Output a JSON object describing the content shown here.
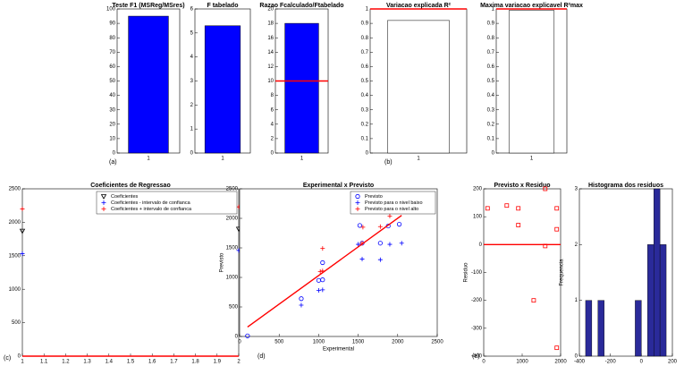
{
  "figure_labels": [
    "(a)",
    "(b)",
    "(c)",
    "(d)",
    "(e)"
  ],
  "chart_data": [
    {
      "type": "bar",
      "title": "Teste F1 (MSReg/MSres)",
      "categories": [
        "1"
      ],
      "values": [
        95
      ],
      "color": "#0000ff",
      "ylim": [
        0,
        100
      ],
      "yticks": [
        0,
        10,
        20,
        30,
        40,
        50,
        60,
        70,
        80,
        90,
        100
      ]
    },
    {
      "type": "bar",
      "title": "F tabelado",
      "categories": [
        "1"
      ],
      "values": [
        5.3
      ],
      "color": "#0000ff",
      "ylim": [
        0,
        6
      ],
      "yticks": [
        0,
        1,
        2,
        3,
        4,
        5,
        6
      ]
    },
    {
      "type": "bar",
      "title": "Razao Fcalculado/Ftabelado",
      "categories": [
        "1"
      ],
      "values": [
        18
      ],
      "color": "#0000ff",
      "ylim": [
        0,
        20
      ],
      "yticks": [
        0,
        2,
        4,
        6,
        8,
        10,
        12,
        14,
        16,
        18,
        20
      ],
      "ref_line": {
        "y": 10,
        "color": "#ff0000"
      }
    },
    {
      "type": "bar",
      "title": "Variacao explicada R²",
      "categories": [
        "1"
      ],
      "values": [
        0.92
      ],
      "color": "#ffffff",
      "ylim": [
        0,
        1
      ],
      "yticks": [
        0,
        0.1,
        0.2,
        0.3,
        0.4,
        0.5,
        0.6,
        0.7,
        0.8,
        0.9,
        1
      ],
      "ref_line": {
        "y": 1,
        "color": "#ff0000"
      }
    },
    {
      "type": "bar",
      "title": "Maxima variacao explicavel R²max",
      "categories": [
        "1"
      ],
      "values": [
        0.99
      ],
      "color": "#ffffff",
      "ylim": [
        0,
        1
      ],
      "yticks": [
        0,
        0.1,
        0.2,
        0.3,
        0.4,
        0.5,
        0.6,
        0.7,
        0.8,
        0.9,
        1
      ],
      "ref_line": {
        "y": 1,
        "color": "#ff0000"
      }
    },
    {
      "type": "scatter",
      "title": "Coeficientes de Regressao",
      "xlim": [
        1,
        2
      ],
      "xticks": [
        1,
        1.1,
        1.2,
        1.3,
        1.4,
        1.5,
        1.6,
        1.7,
        1.8,
        1.9,
        2
      ],
      "ylim": [
        0,
        2500
      ],
      "yticks": [
        0,
        500,
        1000,
        1500,
        2000,
        2500
      ],
      "ref_line": {
        "y": 0,
        "color": "#ff0000"
      },
      "series": [
        {
          "name": "Coeficientes",
          "color": "#000000",
          "marker": "triangle",
          "x": [
            1,
            2
          ],
          "values": [
            1870,
            1900
          ]
        },
        {
          "name": "Coeficientes - intervalo de confianca",
          "color": "#0000ff",
          "marker": "plus",
          "x": [
            1,
            2
          ],
          "values": [
            1530,
            1580
          ]
        },
        {
          "name": "Coeficientes + intervalo de confianca",
          "color": "#ff0000",
          "marker": "plus",
          "x": [
            1,
            2
          ],
          "values": [
            2200,
            2230
          ]
        }
      ]
    },
    {
      "type": "scatter",
      "title": "Experimental x Previsto",
      "xlabel": "Experimental",
      "ylabel": "Previsto",
      "xlim": [
        0,
        2500
      ],
      "xticks": [
        0,
        500,
        1000,
        1500,
        2000,
        2500
      ],
      "ylim": [
        0,
        2500
      ],
      "yticks": [
        0,
        500,
        1000,
        1500,
        2000,
        2500
      ],
      "series": [
        {
          "name": "Previsto",
          "color": "#0000ff",
          "marker": "circle",
          "x": [
            100,
            780,
            1000,
            1050,
            1050,
            1520,
            1550,
            1780,
            1880,
            2020
          ],
          "values": [
            10,
            640,
            950,
            1250,
            960,
            1880,
            1580,
            1580,
            1870,
            1900
          ]
        },
        {
          "name": "Previsto para o  nivel baixo",
          "color": "#0000ff",
          "marker": "plus",
          "x": [
            780,
            1000,
            1050,
            1550,
            1500,
            1780,
            1900,
            2050
          ],
          "values": [
            530,
            780,
            790,
            1310,
            1560,
            1300,
            1560,
            1580
          ]
        },
        {
          "name": "Previsto para o  nivel alto",
          "color": "#ff0000",
          "marker": "plus",
          "x": [
            1020,
            1050,
            1550,
            1560,
            1780,
            1900,
            2050,
            1050
          ],
          "values": [
            1100,
            1490,
            1580,
            1850,
            1860,
            2040,
            2200,
            1110
          ]
        },
        {
          "color": "#ff0000",
          "marker": "line",
          "x": [
            100,
            2050
          ],
          "values": [
            160,
            2050
          ]
        }
      ]
    },
    {
      "type": "scatter",
      "title": "Previsto x Residuo",
      "xlabel": "Previsto",
      "ylabel": "Residuo",
      "xlim": [
        0,
        2000
      ],
      "xticks": [
        0,
        1000,
        2000
      ],
      "ylim": [
        -400,
        200
      ],
      "yticks": [
        -400,
        -300,
        -200,
        -100,
        0,
        100,
        200
      ],
      "ref_line": {
        "y": 0,
        "color": "#ff0000"
      },
      "series": [
        {
          "color": "#ff0000",
          "marker": "square",
          "x": [
            100,
            600,
            900,
            900,
            1300,
            1600,
            1600,
            1900,
            1900,
            1900
          ],
          "values": [
            130,
            140,
            130,
            70,
            -200,
            200,
            -5,
            130,
            55,
            -370
          ]
        }
      ]
    },
    {
      "type": "histogram",
      "title": "Histograma dos residuos",
      "xlabel": "Residuos",
      "ylabel": "Frequencia",
      "color": "#2a2a9a",
      "bins": [
        -400,
        -360,
        -320,
        -280,
        -240,
        -200,
        -160,
        -120,
        -80,
        -40,
        0,
        40,
        80,
        120,
        160,
        200
      ],
      "values": [
        0,
        1,
        0,
        1,
        0,
        0,
        0,
        0,
        0,
        1,
        0,
        2,
        3,
        2,
        0
      ],
      "xlim": [
        -400,
        200
      ],
      "xticks": [
        -400,
        -200,
        0,
        200
      ],
      "ylim": [
        0,
        3
      ],
      "yticks": [
        0,
        1,
        2,
        3
      ]
    }
  ]
}
